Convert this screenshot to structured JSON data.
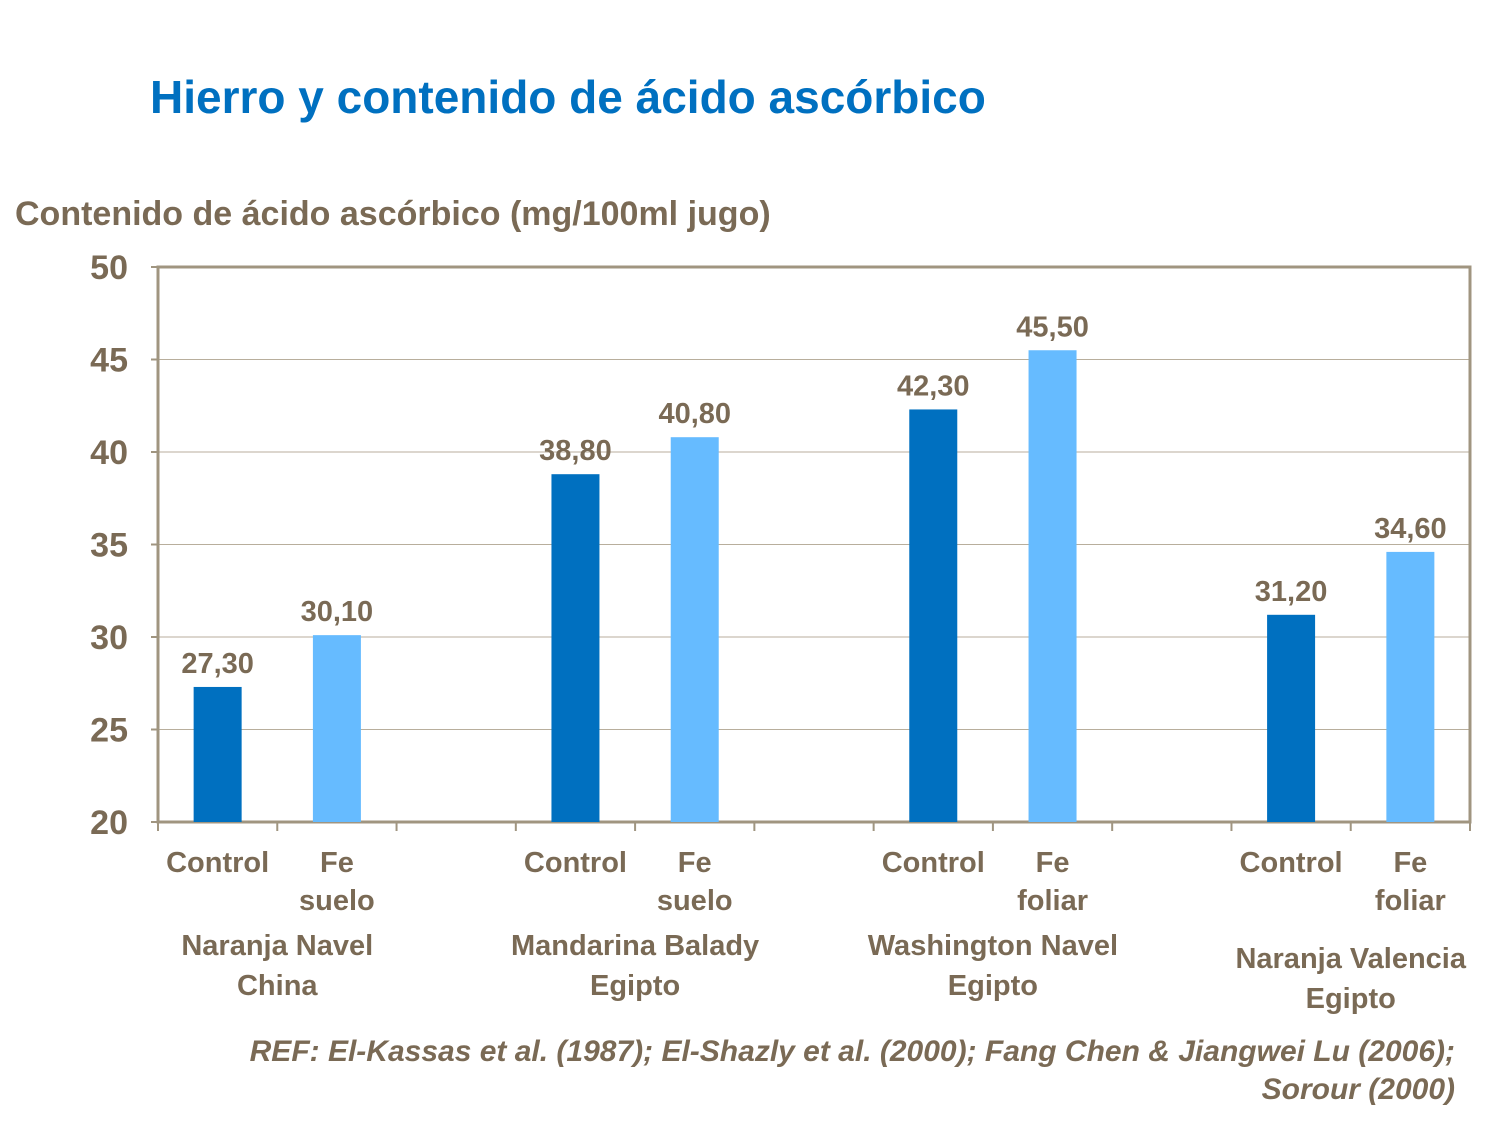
{
  "title": "Hierro y contenido de ácido ascórbico",
  "reference": "REF: El-Kassas et al. (1987); El-Shazly et al. (2000); Fang Chen & Jiangwei Lu (2006); Sorour (2000)",
  "colors": {
    "control": "#0070C0",
    "fe": "#66BBFF",
    "text": "#7A6A55",
    "title": "#0070C0"
  },
  "chart_data": {
    "type": "bar",
    "ylabel": "Contenido de ácido ascórbico (mg/100ml jugo)",
    "ylim": [
      20,
      50
    ],
    "yticks": [
      "20",
      "25",
      "30",
      "35",
      "40",
      "45",
      "50"
    ],
    "grid": true,
    "groups": [
      {
        "label": [
          "Naranja Navel",
          "China"
        ],
        "bars": [
          {
            "label": [
              "Control"
            ],
            "value": 27.3,
            "data_label": "27,30",
            "kind": "control"
          },
          {
            "label": [
              "Fe",
              "suelo"
            ],
            "value": 30.1,
            "data_label": "30,10",
            "kind": "fe"
          }
        ]
      },
      {
        "label": [
          "Mandarina Balady",
          "Egipto"
        ],
        "bars": [
          {
            "label": [
              "Control"
            ],
            "value": 38.8,
            "data_label": "38,80",
            "kind": "control"
          },
          {
            "label": [
              "Fe",
              "suelo"
            ],
            "value": 40.8,
            "data_label": "40,80",
            "kind": "fe"
          }
        ]
      },
      {
        "label": [
          "Washington Navel",
          "Egipto"
        ],
        "bars": [
          {
            "label": [
              "Control"
            ],
            "value": 42.3,
            "data_label": "42,30",
            "kind": "control"
          },
          {
            "label": [
              "Fe",
              "foliar"
            ],
            "value": 45.5,
            "data_label": "45,50",
            "kind": "fe"
          }
        ]
      },
      {
        "label": [
          "Naranja Valencia",
          "Egipto"
        ],
        "bars": [
          {
            "label": [
              "Control"
            ],
            "value": 31.2,
            "data_label": "31,20",
            "kind": "control"
          },
          {
            "label": [
              "Fe",
              "foliar"
            ],
            "value": 34.6,
            "data_label": "34,60",
            "kind": "fe"
          }
        ]
      }
    ]
  }
}
